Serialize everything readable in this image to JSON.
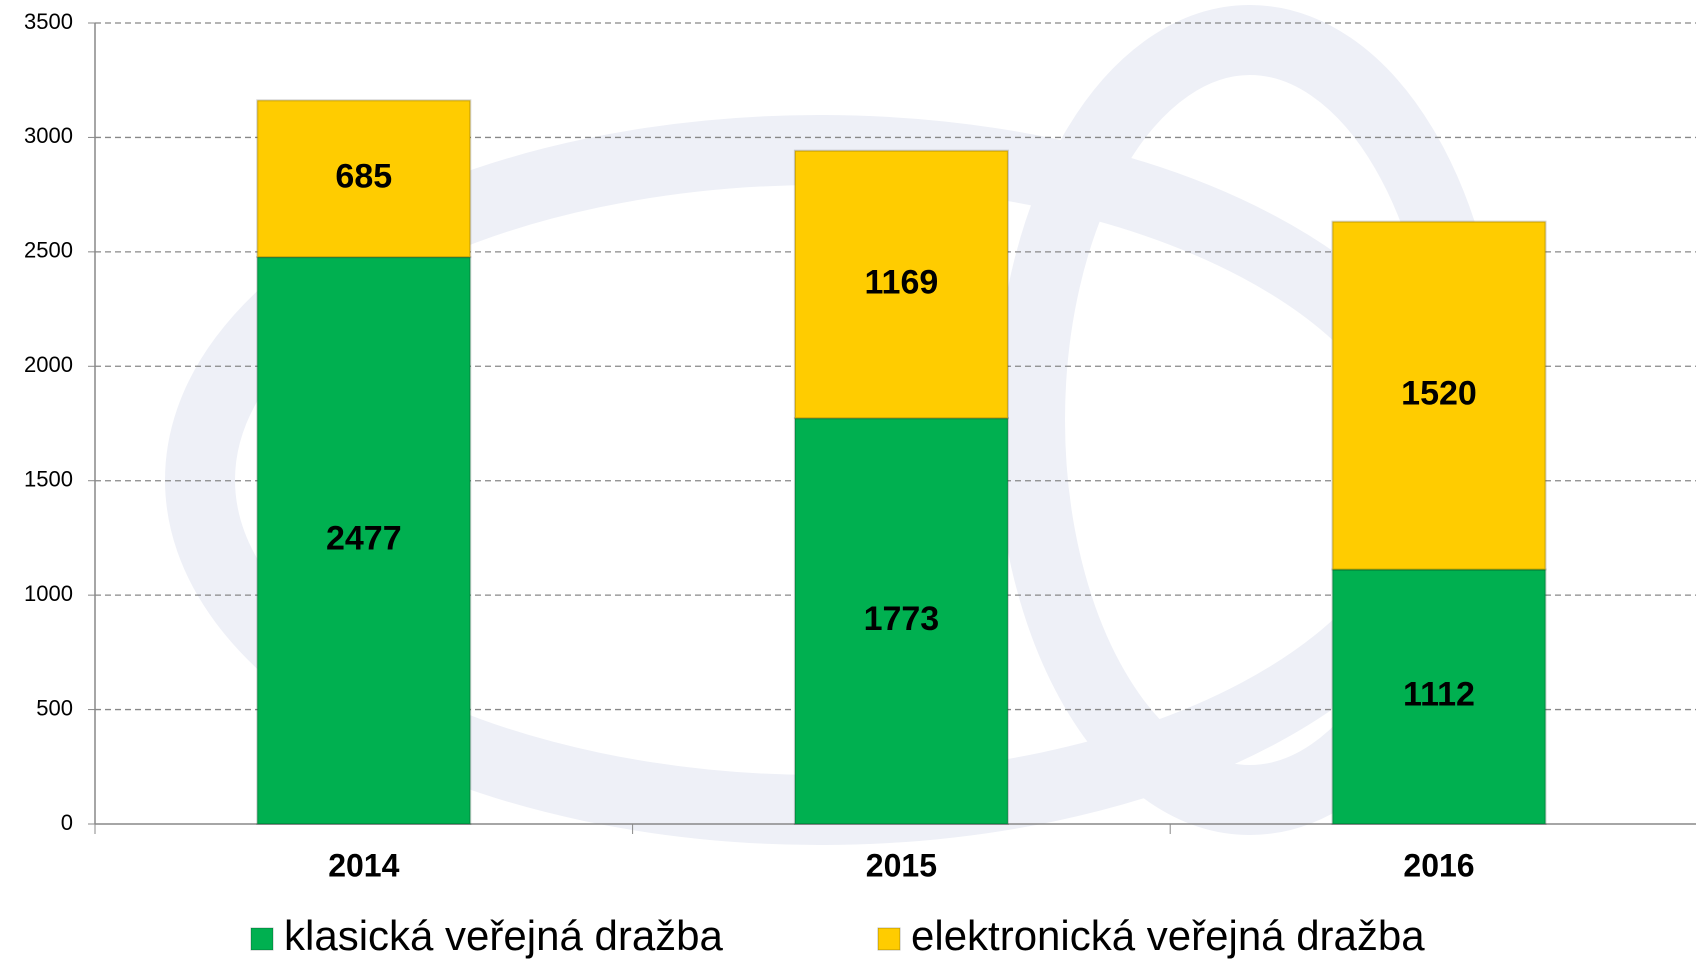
{
  "chart_data": {
    "type": "bar",
    "stacked": true,
    "categories": [
      "2014",
      "2015",
      "2016"
    ],
    "series": [
      {
        "name": "klasická veřejná dražba",
        "color": "#00b050",
        "values": [
          2477,
          1773,
          1112
        ]
      },
      {
        "name": "elektronická veřejná dražba",
        "color": "#ffcc00",
        "values": [
          685,
          1169,
          1520
        ]
      }
    ],
    "ylim": [
      0,
      3500
    ],
    "yticks": [
      0,
      500,
      1000,
      1500,
      2000,
      2500,
      3000,
      3500
    ],
    "grid": true
  }
}
